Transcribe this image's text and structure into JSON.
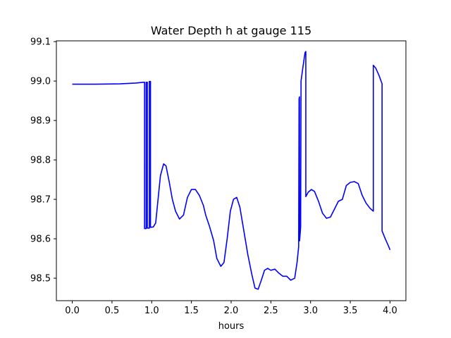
{
  "chart_data": {
    "type": "line",
    "title": "Water Depth h at gauge 115",
    "xlabel": "hours",
    "ylabel": "",
    "xlim": [
      -0.2,
      4.2
    ],
    "ylim": [
      98.443,
      99.102
    ],
    "xticks": [
      "0.0",
      "0.5",
      "1.0",
      "1.5",
      "2.0",
      "2.5",
      "3.0",
      "3.5",
      "4.0"
    ],
    "yticks": [
      "98.5",
      "98.6",
      "98.7",
      "98.8",
      "98.9",
      "99.0",
      "99.1"
    ],
    "grid": false,
    "legend": "none",
    "series": [
      {
        "color": "#0000ff",
        "points": [
          [
            0.0,
            98.992
          ],
          [
            0.3,
            98.992
          ],
          [
            0.6,
            98.993
          ],
          [
            0.8,
            98.995
          ],
          [
            0.9,
            98.997
          ],
          [
            0.91,
            98.997
          ],
          [
            0.91,
            98.626
          ],
          [
            0.93,
            98.626
          ],
          [
            0.93,
            98.997
          ],
          [
            0.945,
            98.997
          ],
          [
            0.945,
            98.627
          ],
          [
            0.97,
            98.627
          ],
          [
            0.97,
            98.999
          ],
          [
            0.985,
            98.999
          ],
          [
            0.985,
            98.629
          ],
          [
            1.02,
            98.63
          ],
          [
            1.05,
            98.64
          ],
          [
            1.08,
            98.7
          ],
          [
            1.11,
            98.76
          ],
          [
            1.15,
            98.79
          ],
          [
            1.18,
            98.785
          ],
          [
            1.22,
            98.745
          ],
          [
            1.26,
            98.7
          ],
          [
            1.3,
            98.67
          ],
          [
            1.35,
            98.65
          ],
          [
            1.4,
            98.66
          ],
          [
            1.45,
            98.705
          ],
          [
            1.5,
            98.725
          ],
          [
            1.55,
            98.725
          ],
          [
            1.6,
            98.71
          ],
          [
            1.65,
            98.685
          ],
          [
            1.68,
            98.66
          ],
          [
            1.73,
            98.63
          ],
          [
            1.78,
            98.595
          ],
          [
            1.82,
            98.55
          ],
          [
            1.87,
            98.53
          ],
          [
            1.91,
            98.54
          ],
          [
            1.95,
            98.6
          ],
          [
            1.99,
            98.67
          ],
          [
            2.03,
            98.7
          ],
          [
            2.07,
            98.705
          ],
          [
            2.11,
            98.68
          ],
          [
            2.16,
            98.62
          ],
          [
            2.21,
            98.56
          ],
          [
            2.26,
            98.51
          ],
          [
            2.3,
            98.475
          ],
          [
            2.34,
            98.472
          ],
          [
            2.38,
            98.495
          ],
          [
            2.42,
            98.52
          ],
          [
            2.46,
            98.525
          ],
          [
            2.5,
            98.52
          ],
          [
            2.55,
            98.523
          ],
          [
            2.6,
            98.513
          ],
          [
            2.65,
            98.505
          ],
          [
            2.7,
            98.505
          ],
          [
            2.75,
            98.495
          ],
          [
            2.8,
            98.5
          ],
          [
            2.83,
            98.54
          ],
          [
            2.85,
            98.58
          ],
          [
            2.855,
            98.955
          ],
          [
            2.86,
            98.96
          ],
          [
            2.862,
            98.595
          ],
          [
            2.875,
            98.63
          ],
          [
            2.88,
            99.0
          ],
          [
            2.9,
            99.03
          ],
          [
            2.93,
            99.072
          ],
          [
            2.94,
            99.075
          ],
          [
            2.94,
            98.707
          ],
          [
            2.97,
            98.718
          ],
          [
            3.01,
            98.725
          ],
          [
            3.05,
            98.72
          ],
          [
            3.1,
            98.695
          ],
          [
            3.15,
            98.665
          ],
          [
            3.2,
            98.652
          ],
          [
            3.25,
            98.655
          ],
          [
            3.3,
            98.675
          ],
          [
            3.35,
            98.695
          ],
          [
            3.4,
            98.7
          ],
          [
            3.45,
            98.735
          ],
          [
            3.5,
            98.743
          ],
          [
            3.55,
            98.745
          ],
          [
            3.6,
            98.74
          ],
          [
            3.65,
            98.71
          ],
          [
            3.7,
            98.69
          ],
          [
            3.75,
            98.677
          ],
          [
            3.79,
            98.67
          ],
          [
            3.79,
            99.04
          ],
          [
            3.82,
            99.033
          ],
          [
            3.86,
            99.015
          ],
          [
            3.9,
            98.993
          ],
          [
            3.9,
            98.62
          ],
          [
            3.94,
            98.6
          ],
          [
            3.98,
            98.582
          ],
          [
            4.0,
            98.572
          ]
        ]
      }
    ]
  }
}
